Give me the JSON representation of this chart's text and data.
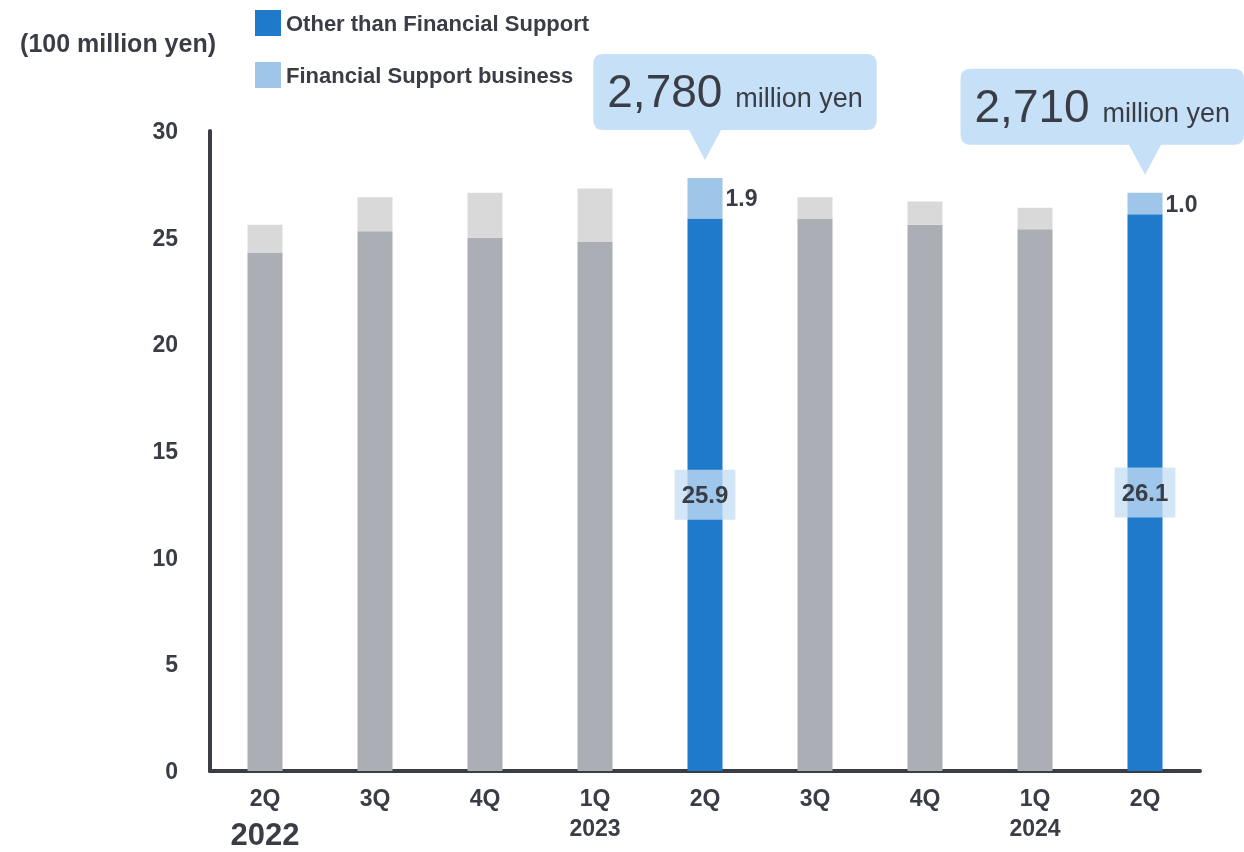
{
  "chart_data": {
    "type": "bar",
    "stacked": true,
    "ylabel": "(100 million yen)",
    "categories": [
      "2Q",
      "3Q",
      "4Q",
      "1Q\n2023",
      "2Q",
      "3Q",
      "4Q",
      "1Q\n2024",
      "2Q"
    ],
    "annotations": [
      "2022",
      "2,780 million yen",
      "2,710 million yen"
    ],
    "series": [
      {
        "name": "Other than Financial Support",
        "color": "#1f7acc",
        "colors": [
          "#abaeb5",
          "#abaeb5",
          "#abaeb5",
          "#abaeb5",
          "#1f7acc",
          "#abaeb5",
          "#abaeb5",
          "#abaeb5",
          "#1f7acc"
        ],
        "values": [
          24.3,
          25.3,
          25.0,
          24.8,
          25.9,
          25.9,
          25.6,
          25.4,
          26.1
        ],
        "value_labels": [
          null,
          null,
          null,
          null,
          "25.9",
          null,
          null,
          null,
          "26.1"
        ]
      },
      {
        "name": "Financial Support business",
        "color": "#9fc5e8",
        "colors": [
          "#d9d9d9",
          "#d9d9d9",
          "#d9d9d9",
          "#d9d9d9",
          "#9fc5e8",
          "#d9d9d9",
          "#d9d9d9",
          "#d9d9d9",
          "#9fc5e8"
        ],
        "values": [
          1.3,
          1.6,
          2.1,
          2.5,
          1.9,
          1.0,
          1.1,
          1.0,
          1.0
        ],
        "value_labels": [
          null,
          null,
          null,
          null,
          "1.9",
          null,
          null,
          null,
          "1.0"
        ]
      }
    ],
    "ylim": [
      0,
      30
    ],
    "yticks": [
      0,
      5,
      10,
      15,
      20,
      25,
      30
    ],
    "grid": false,
    "legend": "top left"
  }
}
